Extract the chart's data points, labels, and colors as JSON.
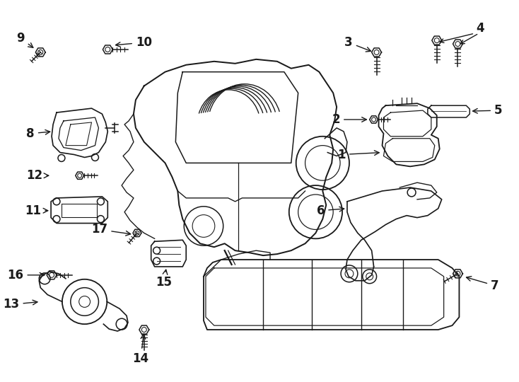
{
  "bg_color": "#ffffff",
  "line_color": "#1a1a1a",
  "figsize": [
    7.34,
    5.4
  ],
  "dpi": 100,
  "lw": 1.1,
  "font_size": 12
}
